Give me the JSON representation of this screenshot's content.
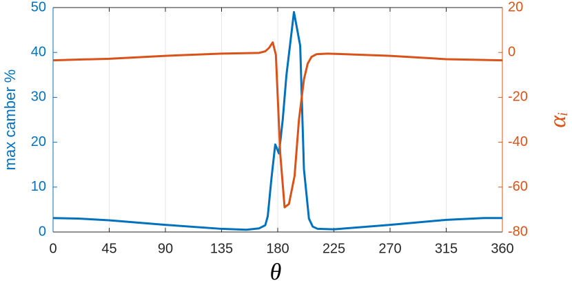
{
  "chart_data": {
    "type": "line",
    "xlabel": "θ",
    "ylabel": "max camber %",
    "y2label": "αᵢ",
    "xlim": [
      0,
      360
    ],
    "xticks": [
      0,
      45,
      90,
      135,
      180,
      225,
      270,
      315,
      360
    ],
    "ylim": [
      0,
      50
    ],
    "yticks": [
      0,
      10,
      20,
      30,
      40,
      50
    ],
    "y2lim": [
      -80,
      20
    ],
    "y2ticks": [
      -80,
      -60,
      -40,
      -20,
      0,
      20
    ],
    "xgrid": true,
    "series": [
      {
        "name": "max camber %",
        "color": "#0072bd",
        "axis": "y",
        "x": [
          0,
          20,
          45,
          90,
          135,
          155,
          165,
          170,
          172,
          175,
          178,
          181,
          184,
          187,
          193,
          198,
          201,
          205,
          208,
          212,
          225,
          270,
          315,
          345,
          360
        ],
        "values": [
          3.1,
          3.0,
          2.6,
          1.6,
          0.7,
          0.5,
          0.8,
          1.5,
          3.5,
          12,
          19.5,
          17.5,
          25,
          35,
          49,
          41.5,
          14,
          3,
          1.2,
          0.7,
          0.6,
          1.6,
          2.7,
          3.1,
          3.1
        ]
      },
      {
        "name": "αᵢ",
        "color": "#d95319",
        "axis": "y2",
        "x": [
          0,
          45,
          90,
          135,
          165,
          170,
          173,
          176,
          178.5,
          182,
          185.5,
          189,
          193.5,
          197,
          201,
          204,
          207,
          211,
          220,
          270,
          315,
          360
        ],
        "values": [
          -3.5,
          -2.8,
          -1.5,
          -0.5,
          -0.2,
          0.5,
          2,
          4.5,
          -1,
          -45,
          -69,
          -67.5,
          -55,
          -30,
          -12,
          -5,
          -2,
          -0.8,
          -0.5,
          -1.5,
          -3,
          -3.5
        ]
      }
    ]
  }
}
